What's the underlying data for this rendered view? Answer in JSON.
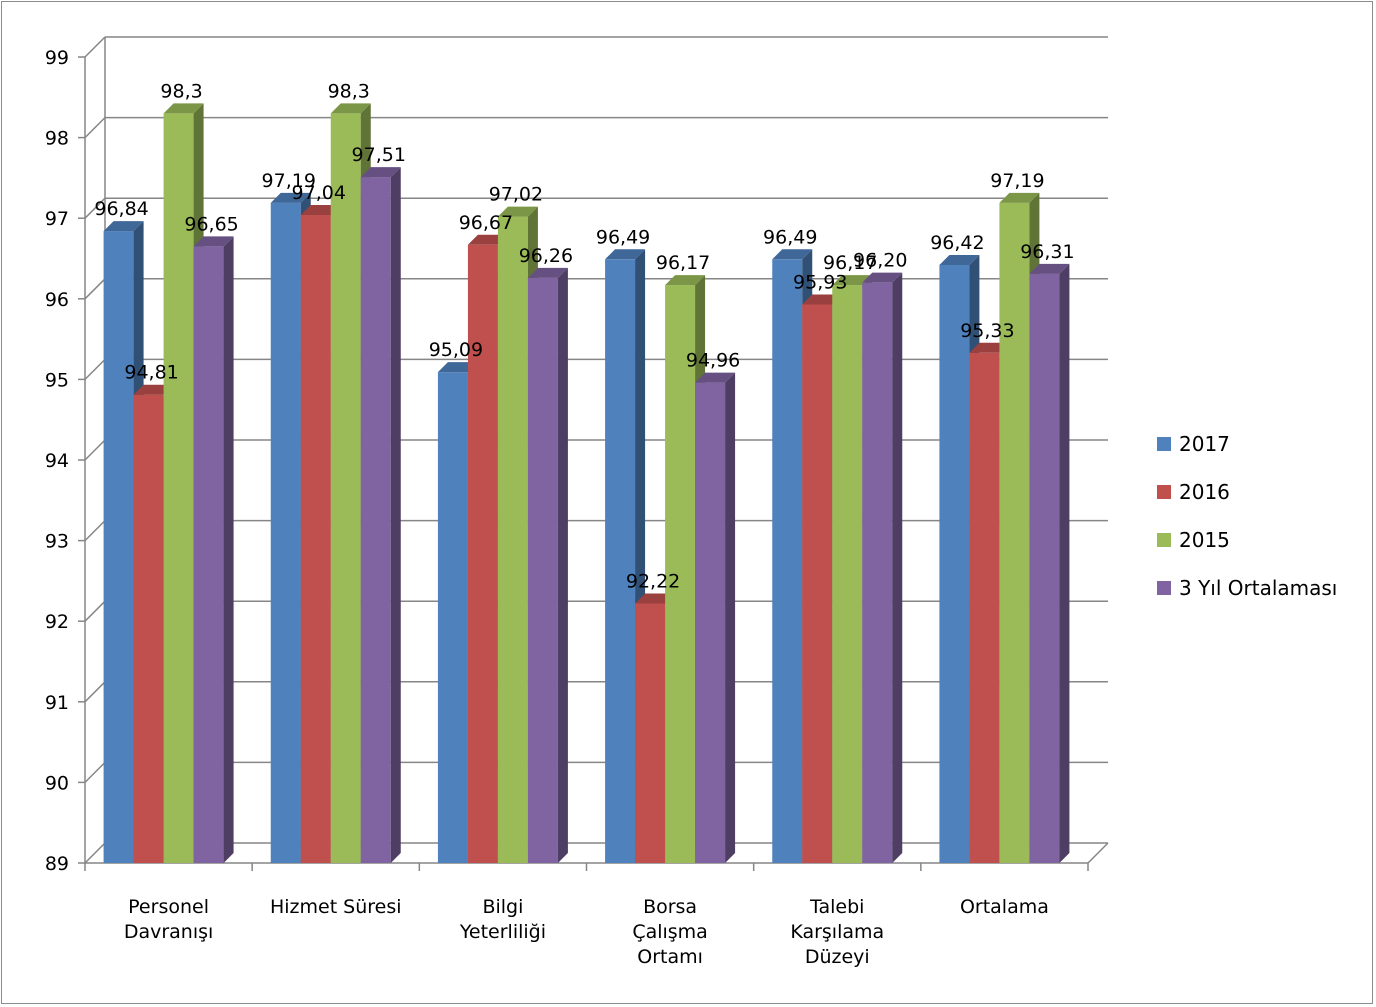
{
  "chart_data": {
    "type": "bar",
    "categories": [
      [
        "Personel",
        "Davranışı"
      ],
      [
        "Hizmet Süresi"
      ],
      [
        "Bilgi",
        "Yeterliliği"
      ],
      [
        "Borsa",
        "Çalışma",
        "Ortamı"
      ],
      [
        "Talebi",
        "Karşılama",
        "Düzeyi"
      ],
      [
        "Ortalama"
      ]
    ],
    "series": [
      {
        "name": "2017",
        "color": "#4f81bd",
        "values": [
          96.84,
          97.19,
          95.09,
          96.49,
          96.49,
          96.42
        ],
        "labels": [
          "96,84",
          "97,19",
          "95,09",
          "96,49",
          "96,49",
          "96,42"
        ]
      },
      {
        "name": "2016",
        "color": "#c0504d",
        "values": [
          94.81,
          97.04,
          96.67,
          92.22,
          95.93,
          95.33
        ],
        "labels": [
          "94,81",
          "97,04",
          "96,67",
          "92,22",
          "95,93",
          "95,33"
        ]
      },
      {
        "name": "2015",
        "color": "#9bbb59",
        "values": [
          98.3,
          98.3,
          97.02,
          96.17,
          96.17,
          97.19
        ],
        "labels": [
          "98,3",
          "98,3",
          "97,02",
          "96,17",
          "96,17",
          "97,19"
        ]
      },
      {
        "name": "3 Yıl Ortalaması",
        "color": "#8064a2",
        "values": [
          96.65,
          97.51,
          96.26,
          94.96,
          96.2,
          96.31
        ],
        "labels": [
          "96,65",
          "97,51",
          "96,26",
          "94,96",
          "96,20",
          "96,31"
        ]
      }
    ],
    "ylim": [
      89,
      99
    ],
    "yticks": [
      89,
      90,
      91,
      92,
      93,
      94,
      95,
      96,
      97,
      98,
      99
    ],
    "grid": true,
    "legend_position": "right",
    "style": "3d-clustered-column"
  }
}
